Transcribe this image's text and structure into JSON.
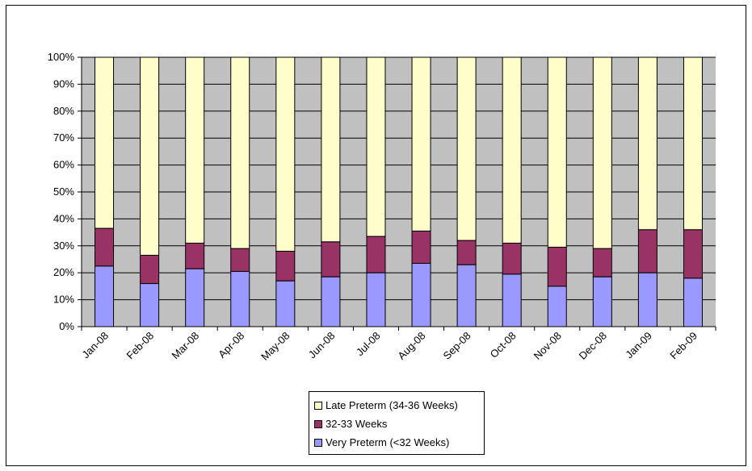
{
  "chart_data": {
    "type": "bar",
    "stacked": true,
    "percent_stacked": true,
    "categories": [
      "Jan-08",
      "Feb-08",
      "Mar-08",
      "Apr-08",
      "May-08",
      "Jun-08",
      "Jul-08",
      "Aug-08",
      "Sep-08",
      "Oct-08",
      "Nov-08",
      "Dec-08",
      "Jan-09",
      "Feb-09"
    ],
    "series": [
      {
        "name": "Very Preterm (<32 Weeks)",
        "color": "#9999FF",
        "values": [
          22.5,
          16,
          21.5,
          20.5,
          17,
          18.5,
          20,
          23.5,
          23,
          19.5,
          15,
          18.5,
          20,
          18
        ]
      },
      {
        "name": "32-33 Weeks",
        "color": "#993366",
        "values": [
          14,
          10.5,
          9.5,
          8.5,
          11,
          13,
          13.5,
          12,
          9,
          11.5,
          14.5,
          10.5,
          16,
          18
        ]
      },
      {
        "name": "Late Preterm (34-36 Weeks)",
        "color": "#FFFFCC",
        "values": [
          63.5,
          73.5,
          69,
          71,
          72,
          68.5,
          66.5,
          64.5,
          68,
          69,
          70.5,
          71,
          64,
          64
        ]
      }
    ],
    "y_ticks": [
      "0%",
      "10%",
      "20%",
      "30%",
      "40%",
      "50%",
      "60%",
      "70%",
      "80%",
      "90%",
      "100%"
    ],
    "ylim": [
      0,
      100
    ],
    "plot_background": "#C0C0C0",
    "gridlines": true,
    "legend_position": "bottom",
    "legend_order": [
      "Late Preterm (34-36 Weeks)",
      "32-33 Weeks",
      "Very Preterm (<32 Weeks)"
    ]
  }
}
